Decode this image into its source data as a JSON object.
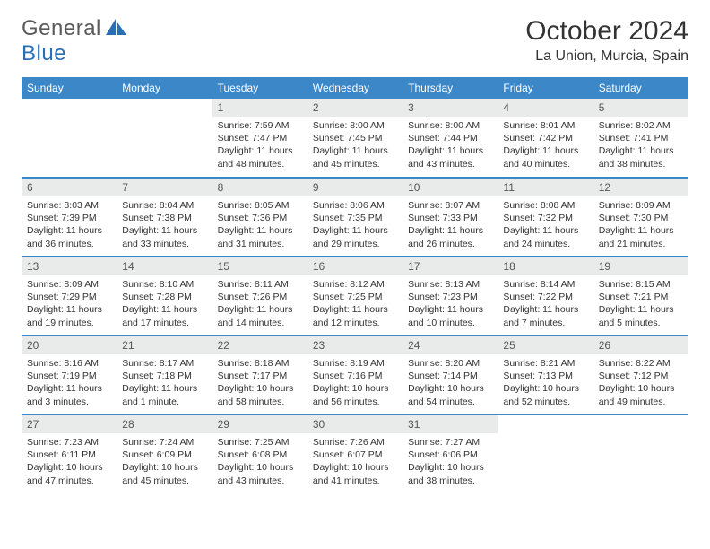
{
  "logo": {
    "general": "General",
    "blue": "Blue"
  },
  "title": "October 2024",
  "location": "La Union, Murcia, Spain",
  "colors": {
    "header_bg": "#3b87c8",
    "header_text": "#ffffff",
    "daynum_bg": "#e9eaea",
    "border": "#3b87c8",
    "logo_blue": "#2a6fb5",
    "logo_gray": "#5a5a5a"
  },
  "day_headers": [
    "Sunday",
    "Monday",
    "Tuesday",
    "Wednesday",
    "Thursday",
    "Friday",
    "Saturday"
  ],
  "weeks": [
    [
      null,
      null,
      {
        "n": "1",
        "sunrise": "Sunrise: 7:59 AM",
        "sunset": "Sunset: 7:47 PM",
        "daylight": "Daylight: 11 hours and 48 minutes."
      },
      {
        "n": "2",
        "sunrise": "Sunrise: 8:00 AM",
        "sunset": "Sunset: 7:45 PM",
        "daylight": "Daylight: 11 hours and 45 minutes."
      },
      {
        "n": "3",
        "sunrise": "Sunrise: 8:00 AM",
        "sunset": "Sunset: 7:44 PM",
        "daylight": "Daylight: 11 hours and 43 minutes."
      },
      {
        "n": "4",
        "sunrise": "Sunrise: 8:01 AM",
        "sunset": "Sunset: 7:42 PM",
        "daylight": "Daylight: 11 hours and 40 minutes."
      },
      {
        "n": "5",
        "sunrise": "Sunrise: 8:02 AM",
        "sunset": "Sunset: 7:41 PM",
        "daylight": "Daylight: 11 hours and 38 minutes."
      }
    ],
    [
      {
        "n": "6",
        "sunrise": "Sunrise: 8:03 AM",
        "sunset": "Sunset: 7:39 PM",
        "daylight": "Daylight: 11 hours and 36 minutes."
      },
      {
        "n": "7",
        "sunrise": "Sunrise: 8:04 AM",
        "sunset": "Sunset: 7:38 PM",
        "daylight": "Daylight: 11 hours and 33 minutes."
      },
      {
        "n": "8",
        "sunrise": "Sunrise: 8:05 AM",
        "sunset": "Sunset: 7:36 PM",
        "daylight": "Daylight: 11 hours and 31 minutes."
      },
      {
        "n": "9",
        "sunrise": "Sunrise: 8:06 AM",
        "sunset": "Sunset: 7:35 PM",
        "daylight": "Daylight: 11 hours and 29 minutes."
      },
      {
        "n": "10",
        "sunrise": "Sunrise: 8:07 AM",
        "sunset": "Sunset: 7:33 PM",
        "daylight": "Daylight: 11 hours and 26 minutes."
      },
      {
        "n": "11",
        "sunrise": "Sunrise: 8:08 AM",
        "sunset": "Sunset: 7:32 PM",
        "daylight": "Daylight: 11 hours and 24 minutes."
      },
      {
        "n": "12",
        "sunrise": "Sunrise: 8:09 AM",
        "sunset": "Sunset: 7:30 PM",
        "daylight": "Daylight: 11 hours and 21 minutes."
      }
    ],
    [
      {
        "n": "13",
        "sunrise": "Sunrise: 8:09 AM",
        "sunset": "Sunset: 7:29 PM",
        "daylight": "Daylight: 11 hours and 19 minutes."
      },
      {
        "n": "14",
        "sunrise": "Sunrise: 8:10 AM",
        "sunset": "Sunset: 7:28 PM",
        "daylight": "Daylight: 11 hours and 17 minutes."
      },
      {
        "n": "15",
        "sunrise": "Sunrise: 8:11 AM",
        "sunset": "Sunset: 7:26 PM",
        "daylight": "Daylight: 11 hours and 14 minutes."
      },
      {
        "n": "16",
        "sunrise": "Sunrise: 8:12 AM",
        "sunset": "Sunset: 7:25 PM",
        "daylight": "Daylight: 11 hours and 12 minutes."
      },
      {
        "n": "17",
        "sunrise": "Sunrise: 8:13 AM",
        "sunset": "Sunset: 7:23 PM",
        "daylight": "Daylight: 11 hours and 10 minutes."
      },
      {
        "n": "18",
        "sunrise": "Sunrise: 8:14 AM",
        "sunset": "Sunset: 7:22 PM",
        "daylight": "Daylight: 11 hours and 7 minutes."
      },
      {
        "n": "19",
        "sunrise": "Sunrise: 8:15 AM",
        "sunset": "Sunset: 7:21 PM",
        "daylight": "Daylight: 11 hours and 5 minutes."
      }
    ],
    [
      {
        "n": "20",
        "sunrise": "Sunrise: 8:16 AM",
        "sunset": "Sunset: 7:19 PM",
        "daylight": "Daylight: 11 hours and 3 minutes."
      },
      {
        "n": "21",
        "sunrise": "Sunrise: 8:17 AM",
        "sunset": "Sunset: 7:18 PM",
        "daylight": "Daylight: 11 hours and 1 minute."
      },
      {
        "n": "22",
        "sunrise": "Sunrise: 8:18 AM",
        "sunset": "Sunset: 7:17 PM",
        "daylight": "Daylight: 10 hours and 58 minutes."
      },
      {
        "n": "23",
        "sunrise": "Sunrise: 8:19 AM",
        "sunset": "Sunset: 7:16 PM",
        "daylight": "Daylight: 10 hours and 56 minutes."
      },
      {
        "n": "24",
        "sunrise": "Sunrise: 8:20 AM",
        "sunset": "Sunset: 7:14 PM",
        "daylight": "Daylight: 10 hours and 54 minutes."
      },
      {
        "n": "25",
        "sunrise": "Sunrise: 8:21 AM",
        "sunset": "Sunset: 7:13 PM",
        "daylight": "Daylight: 10 hours and 52 minutes."
      },
      {
        "n": "26",
        "sunrise": "Sunrise: 8:22 AM",
        "sunset": "Sunset: 7:12 PM",
        "daylight": "Daylight: 10 hours and 49 minutes."
      }
    ],
    [
      {
        "n": "27",
        "sunrise": "Sunrise: 7:23 AM",
        "sunset": "Sunset: 6:11 PM",
        "daylight": "Daylight: 10 hours and 47 minutes."
      },
      {
        "n": "28",
        "sunrise": "Sunrise: 7:24 AM",
        "sunset": "Sunset: 6:09 PM",
        "daylight": "Daylight: 10 hours and 45 minutes."
      },
      {
        "n": "29",
        "sunrise": "Sunrise: 7:25 AM",
        "sunset": "Sunset: 6:08 PM",
        "daylight": "Daylight: 10 hours and 43 minutes."
      },
      {
        "n": "30",
        "sunrise": "Sunrise: 7:26 AM",
        "sunset": "Sunset: 6:07 PM",
        "daylight": "Daylight: 10 hours and 41 minutes."
      },
      {
        "n": "31",
        "sunrise": "Sunrise: 7:27 AM",
        "sunset": "Sunset: 6:06 PM",
        "daylight": "Daylight: 10 hours and 38 minutes."
      },
      null,
      null
    ]
  ]
}
